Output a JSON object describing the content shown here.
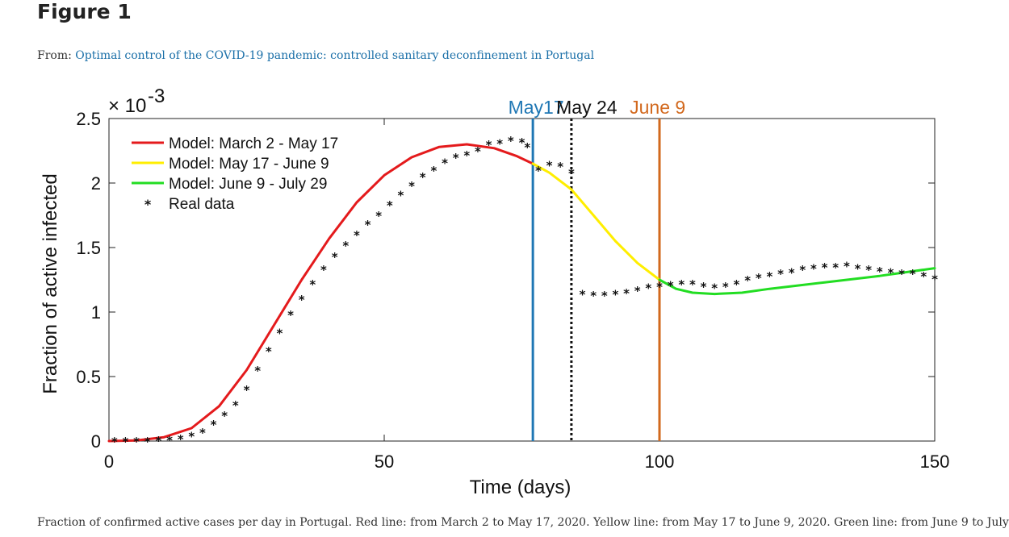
{
  "figure": {
    "title": "Figure 1",
    "from_prefix": "From: ",
    "from_link": "Optimal control of the COVID-19 pandemic: controlled sanitary deconfinement in Portugal",
    "caption": "Fraction of confirmed active cases per day in Portugal. Red line: from March 2 to May 17, 2020. Yellow line: from May 17 to June 9, 2020. Green line: from June 9 to July"
  },
  "chart_data": {
    "type": "line",
    "title": "",
    "xlabel": "Time (days)",
    "ylabel": "Fraction of active infected",
    "y_multiplier_label": "× 10",
    "y_multiplier_exponent": "-3",
    "xlim": [
      0,
      150
    ],
    "ylim": [
      0,
      2.5
    ],
    "x_ticks": [
      0,
      50,
      100,
      150
    ],
    "x_tick_labels": [
      "0",
      "50",
      "100",
      "150"
    ],
    "y_ticks": [
      0,
      0.5,
      1,
      1.5,
      2,
      2.5
    ],
    "y_tick_labels": [
      "0",
      "0.5",
      "1",
      "1.5",
      "2",
      "2.5"
    ],
    "legend_position": "top-left",
    "grid": false,
    "vertical_lines": [
      {
        "x": 77,
        "label": "May17",
        "color": "#1f77b4",
        "style": "solid"
      },
      {
        "x": 84,
        "label": "May 24",
        "color": "#111111",
        "style": "dotted"
      },
      {
        "x": 100,
        "label": "June 9",
        "color": "#d2691e",
        "style": "solid"
      }
    ],
    "series": [
      {
        "name": "Model: March 2 - May 17",
        "color": "#e41a1c",
        "style": "line",
        "x": [
          0,
          5,
          10,
          15,
          20,
          25,
          30,
          35,
          40,
          45,
          50,
          55,
          60,
          65,
          70,
          74,
          77
        ],
        "y": [
          0.0,
          0.005,
          0.03,
          0.1,
          0.27,
          0.55,
          0.9,
          1.25,
          1.57,
          1.85,
          2.06,
          2.2,
          2.28,
          2.3,
          2.27,
          2.21,
          2.15
        ]
      },
      {
        "name": "Model: May 17 - June 9",
        "color": "#ffee00",
        "style": "line",
        "x": [
          77,
          80,
          84,
          88,
          92,
          96,
          100
        ],
        "y": [
          2.15,
          2.08,
          1.95,
          1.75,
          1.55,
          1.38,
          1.25
        ]
      },
      {
        "name": "Model: June 9 - July 29",
        "color": "#22dd22",
        "style": "line",
        "x": [
          100,
          103,
          106,
          110,
          115,
          120,
          130,
          140,
          150
        ],
        "y": [
          1.25,
          1.18,
          1.15,
          1.14,
          1.15,
          1.18,
          1.23,
          1.28,
          1.34
        ]
      },
      {
        "name": "Real data",
        "color": "#111111",
        "style": "markers",
        "x": [
          1,
          3,
          5,
          7,
          9,
          11,
          13,
          15,
          17,
          19,
          21,
          23,
          25,
          27,
          29,
          31,
          33,
          35,
          37,
          39,
          41,
          43,
          45,
          47,
          49,
          51,
          53,
          55,
          57,
          59,
          61,
          63,
          65,
          67,
          69,
          71,
          73,
          75,
          76,
          78,
          80,
          82,
          84,
          86,
          88,
          90,
          92,
          94,
          96,
          98,
          100,
          102,
          104,
          106,
          108,
          110,
          112,
          114,
          116,
          118,
          120,
          122,
          124,
          126,
          128,
          130,
          132,
          134,
          136,
          138,
          140,
          142,
          144,
          146,
          148,
          150
        ],
        "y": [
          0.0,
          0.0,
          0.0,
          0.0,
          0.005,
          0.01,
          0.02,
          0.04,
          0.07,
          0.13,
          0.2,
          0.28,
          0.4,
          0.55,
          0.7,
          0.84,
          0.98,
          1.1,
          1.22,
          1.33,
          1.43,
          1.52,
          1.6,
          1.68,
          1.75,
          1.83,
          1.91,
          1.98,
          2.05,
          2.1,
          2.16,
          2.2,
          2.22,
          2.25,
          2.3,
          2.31,
          2.33,
          2.32,
          2.28,
          2.1,
          2.14,
          2.13,
          2.08,
          1.14,
          1.13,
          1.13,
          1.14,
          1.15,
          1.17,
          1.19,
          1.2,
          1.21,
          1.22,
          1.22,
          1.2,
          1.19,
          1.2,
          1.22,
          1.25,
          1.27,
          1.28,
          1.3,
          1.31,
          1.33,
          1.34,
          1.35,
          1.35,
          1.36,
          1.34,
          1.33,
          1.32,
          1.31,
          1.3,
          1.3,
          1.28,
          1.26
        ]
      }
    ]
  }
}
